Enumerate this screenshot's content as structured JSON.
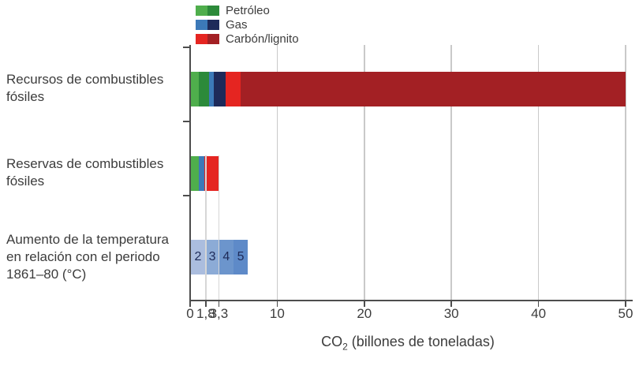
{
  "colors": {
    "oil_reserve": "#4fae4c",
    "oil_resource": "#2c8a3a",
    "gas_reserve": "#3c79b8",
    "gas_resource": "#1e2a5a",
    "coal_reserve": "#e52521",
    "coal_resource": "#a32024",
    "temp_2": "#abbdde",
    "temp_3": "#8cabd6",
    "temp_4": "#6c95cc",
    "temp_5": "#5e8ac8",
    "axis": "#4d4d4d",
    "grid_major": "#c9c9c9",
    "grid_minor": "#d6d6d6",
    "text": "#3c3c3c",
    "temp_label_text": "#1e2a58"
  },
  "legend": [
    {
      "label": "Petróleo",
      "swatch_colors": [
        "oil_reserve",
        "oil_resource"
      ]
    },
    {
      "label": "Gas",
      "swatch_colors": [
        "gas_reserve",
        "gas_resource"
      ]
    },
    {
      "label": "Carbón/lignito",
      "swatch_colors": [
        "coal_reserve",
        "coal_resource"
      ]
    }
  ],
  "chart_data": {
    "type": "bar",
    "orientation": "horizontal",
    "stacked": true,
    "xlabel": "CO₂ (billones de toneladas)",
    "xlabel_parts": {
      "prefix": "CO",
      "sub": "2",
      "rest": " (billones de toneladas)"
    },
    "xlim": [
      0,
      50
    ],
    "xticks": [
      0,
      1.8,
      3.3,
      10,
      20,
      30,
      40,
      50
    ],
    "xtick_labels": [
      "0",
      "1,8",
      "3,3",
      "10",
      "20",
      "30",
      "40",
      "50"
    ],
    "major_gridlines": [
      10,
      20,
      30,
      40,
      50
    ],
    "minor_gridlines": [
      1.8,
      3.3
    ],
    "grid": true,
    "legend_position": "top-left",
    "categories": [
      "Recursos de combustibles fósiles",
      "Reservas de combustibles fósiles",
      "Aumento de la temperatura en relación con el periodo 1861–80 (°C)"
    ],
    "bars": [
      {
        "name": "recursos-combustibles-fosiles",
        "label_lines": [
          "Recursos de combustibles",
          "fósiles"
        ],
        "segments": [
          {
            "name": "petroleo-reservas",
            "from": 0,
            "to": 1.0,
            "color": "oil_reserve"
          },
          {
            "name": "petroleo-recursos",
            "from": 1.0,
            "to": 2.2,
            "color": "oil_resource"
          },
          {
            "name": "gas-reservas",
            "from": 2.2,
            "to": 2.7,
            "color": "gas_reserve"
          },
          {
            "name": "gas-recursos",
            "from": 2.7,
            "to": 4.1,
            "color": "gas_resource"
          },
          {
            "name": "carbon-reservas",
            "from": 4.1,
            "to": 5.8,
            "color": "coal_reserve"
          },
          {
            "name": "carbon-recursos",
            "from": 5.8,
            "to": 50,
            "color": "coal_resource"
          }
        ]
      },
      {
        "name": "reservas-combustibles-fosiles",
        "label_lines": [
          "Reservas de combustibles",
          "fósiles"
        ],
        "segments": [
          {
            "name": "petroleo",
            "from": 0,
            "to": 1.0,
            "color": "oil_reserve"
          },
          {
            "name": "gas",
            "from": 1.0,
            "to": 1.6,
            "color": "gas_reserve"
          },
          {
            "name": "carbon",
            "from": 1.6,
            "to": 3.3,
            "color": "coal_reserve"
          }
        ]
      },
      {
        "name": "aumento-temperatura",
        "label_lines": [
          "Aumento de la temperatura",
          "en relación con el periodo",
          "1861–80 (°C)"
        ],
        "segments": [
          {
            "name": "2-grados",
            "from": 0,
            "to": 1.8,
            "color": "temp_2",
            "label": "2"
          },
          {
            "name": "3-grados",
            "from": 1.8,
            "to": 3.3,
            "color": "temp_3",
            "label": "3"
          },
          {
            "name": "4-grados",
            "from": 3.3,
            "to": 5.0,
            "color": "temp_4",
            "label": "4"
          },
          {
            "name": "5-grados",
            "from": 5.0,
            "to": 6.6,
            "color": "temp_5",
            "label": "5"
          }
        ]
      }
    ]
  }
}
